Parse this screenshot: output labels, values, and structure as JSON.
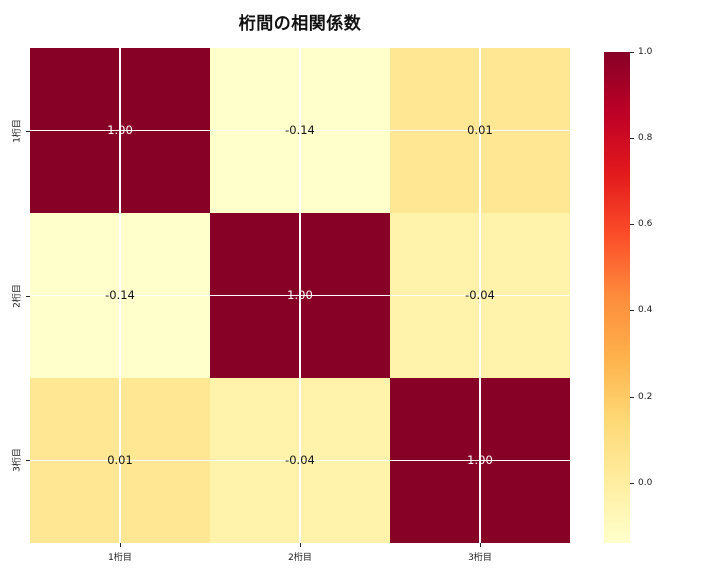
{
  "chart_data": {
    "type": "heatmap",
    "title": "桁間の相関係数",
    "x_categories": [
      "1桁目",
      "2桁目",
      "3桁目"
    ],
    "y_categories": [
      "1桁目",
      "2桁目",
      "3桁目"
    ],
    "matrix": [
      [
        1.0,
        -0.14,
        0.01
      ],
      [
        -0.14,
        1.0,
        -0.04
      ],
      [
        0.01,
        -0.04,
        1.0
      ]
    ],
    "cell_labels": [
      [
        "1.00",
        "-0.14",
        "0.01"
      ],
      [
        "-0.14",
        "1.00",
        "-0.04"
      ],
      [
        "0.01",
        "-0.04",
        "1.00"
      ]
    ],
    "colormap": "YlOrRd",
    "vmin": -0.14,
    "vmax": 1.0,
    "grid": true,
    "legend_position": "right-colorbar",
    "colorbar": {
      "ticks": [
        {
          "label": "1.0",
          "value": 1.0
        },
        {
          "label": "0.8",
          "value": 0.8
        },
        {
          "label": "0.6",
          "value": 0.6
        },
        {
          "label": "0.4",
          "value": 0.4
        },
        {
          "label": "0.2",
          "value": 0.2
        },
        {
          "label": "0.0",
          "value": 0.0
        }
      ],
      "gradient_stops": [
        {
          "pos": 0.0,
          "color": "#ffffcc"
        },
        {
          "pos": 0.125,
          "color": "#ffeda0"
        },
        {
          "pos": 0.25,
          "color": "#fed976"
        },
        {
          "pos": 0.375,
          "color": "#feb24c"
        },
        {
          "pos": 0.5,
          "color": "#fd8d3c"
        },
        {
          "pos": 0.625,
          "color": "#fc4e2a"
        },
        {
          "pos": 0.75,
          "color": "#e31a1c"
        },
        {
          "pos": 0.875,
          "color": "#bd0026"
        },
        {
          "pos": 1.0,
          "color": "#870127"
        }
      ]
    }
  },
  "heatmap": {
    "gridline_color": "#ffffff",
    "cells": [
      {
        "row": 0,
        "col": 0,
        "label": "1.00",
        "bg": "#870127",
        "fg": "#ffffff"
      },
      {
        "row": 0,
        "col": 1,
        "label": "-0.14",
        "bg": "#ffffcc",
        "fg": "#151515"
      },
      {
        "row": 0,
        "col": 2,
        "label": "0.01",
        "bg": "#ffe794",
        "fg": "#151515"
      },
      {
        "row": 1,
        "col": 0,
        "label": "-0.14",
        "bg": "#ffffcc",
        "fg": "#151515"
      },
      {
        "row": 1,
        "col": 1,
        "label": "1.00",
        "bg": "#870127",
        "fg": "#ffffff"
      },
      {
        "row": 1,
        "col": 2,
        "label": "-0.04",
        "bg": "#fff3ab",
        "fg": "#151515"
      },
      {
        "row": 2,
        "col": 0,
        "label": "0.01",
        "bg": "#ffe794",
        "fg": "#151515"
      },
      {
        "row": 2,
        "col": 1,
        "label": "-0.04",
        "bg": "#fff3ab",
        "fg": "#151515"
      },
      {
        "row": 2,
        "col": 2,
        "label": "1.00",
        "bg": "#870127",
        "fg": "#ffffff"
      }
    ]
  }
}
